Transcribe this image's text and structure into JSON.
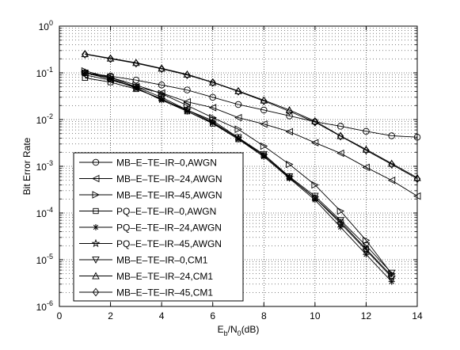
{
  "chart_data": {
    "type": "line",
    "xlabel": {
      "base": "E",
      "sub1": "b",
      "mid": "/N",
      "sub2": "0",
      "tail": "(dB)"
    },
    "ylabel": "Bit Error Rate",
    "xlim": [
      0,
      14
    ],
    "ylim": [
      1e-06,
      1
    ],
    "yscale": "log",
    "grid": true,
    "legend_position": "lower-left",
    "x_ticks": [
      "0",
      "2",
      "4",
      "6",
      "8",
      "10",
      "12",
      "14"
    ],
    "y_ticks": [
      {
        "base": "10",
        "exp": "0",
        "value": 1
      },
      {
        "base": "10",
        "exp": "-1",
        "value": 0.1
      },
      {
        "base": "10",
        "exp": "-2",
        "value": 0.01
      },
      {
        "base": "10",
        "exp": "-3",
        "value": 0.001
      },
      {
        "base": "10",
        "exp": "-4",
        "value": 0.0001
      },
      {
        "base": "10",
        "exp": "-5",
        "value": 1e-05
      },
      {
        "base": "10",
        "exp": "-6",
        "value": 1e-06
      }
    ],
    "series": [
      {
        "name": "MB–E–TE–IR–0,AWGN",
        "marker": "circle",
        "x": [
          1,
          2,
          3,
          4,
          5,
          6,
          7,
          8,
          9,
          10,
          11,
          12,
          13,
          14
        ],
        "y": [
          0.1,
          0.085,
          0.07,
          0.055,
          0.043,
          0.03,
          0.021,
          0.016,
          0.012,
          0.009,
          0.0072,
          0.0056,
          0.0045,
          0.0042
        ]
      },
      {
        "name": "MB–E–TE–IR–24,AWGN",
        "marker": "triangle-left",
        "x": [
          1,
          2,
          3,
          4,
          5,
          6,
          7,
          8,
          9,
          10,
          11,
          12,
          13,
          14
        ],
        "y": [
          0.09,
          0.07,
          0.05,
          0.037,
          0.024,
          0.018,
          0.011,
          0.008,
          0.0055,
          0.0032,
          0.0019,
          0.00095,
          0.0005,
          0.00023
        ]
      },
      {
        "name": "MB–E–TE–IR–45,AWGN",
        "marker": "triangle-right",
        "x": [
          1,
          2,
          3,
          4,
          5,
          6,
          7,
          8,
          9,
          10,
          11,
          12,
          13
        ],
        "y": [
          0.11,
          0.08,
          0.055,
          0.036,
          0.02,
          0.011,
          0.0062,
          0.0027,
          0.0011,
          0.0004,
          0.00011,
          2.6e-05,
          5e-06
        ]
      },
      {
        "name": "PQ–E–TE–IR–0,AWGN",
        "marker": "square",
        "x": [
          1,
          2,
          3,
          4,
          5,
          6,
          7,
          8,
          9,
          10,
          11,
          12,
          13
        ],
        "y": [
          0.078,
          0.063,
          0.045,
          0.028,
          0.015,
          0.0082,
          0.0038,
          0.0017,
          0.00057,
          0.00021,
          6.5e-05,
          1.7e-05,
          4.5e-06
        ]
      },
      {
        "name": "PQ–E–TE–IR–24,AWGN",
        "marker": "asterisk",
        "x": [
          1,
          2,
          3,
          4,
          5,
          6,
          7,
          8,
          9,
          10,
          11,
          12,
          13
        ],
        "y": [
          0.1,
          0.075,
          0.048,
          0.026,
          0.015,
          0.0085,
          0.0038,
          0.0016,
          0.00055,
          0.00019,
          5e-05,
          1.3e-05,
          3.4e-06
        ]
      },
      {
        "name": "PQ–E–TE–IR–45,AWGN",
        "marker": "pentagram",
        "x": [
          1,
          2,
          3,
          4,
          5,
          6,
          7,
          8,
          9,
          10,
          11,
          12,
          13
        ],
        "y": [
          0.1,
          0.074,
          0.047,
          0.027,
          0.016,
          0.0088,
          0.004,
          0.0017,
          0.00058,
          0.00021,
          6e-05,
          1.6e-05,
          4.2e-06
        ]
      },
      {
        "name": "MB–E–TE–IR–0,CM1",
        "marker": "triangle-down",
        "x": [
          1,
          2,
          3,
          4,
          5,
          6,
          7,
          8,
          9,
          10,
          11,
          12,
          13
        ],
        "y": [
          0.1,
          0.08,
          0.05,
          0.03,
          0.016,
          0.0095,
          0.0041,
          0.0018,
          0.0006,
          0.00023,
          7e-05,
          2e-05,
          5.2e-06
        ]
      },
      {
        "name": "MB–E–TE–IR–24,CM1",
        "marker": "triangle-up",
        "x": [
          1,
          2,
          3,
          4,
          5,
          6,
          7,
          8,
          9,
          10,
          11,
          12,
          13,
          14
        ],
        "y": [
          0.255,
          0.205,
          0.165,
          0.125,
          0.093,
          0.063,
          0.041,
          0.026,
          0.016,
          0.0093,
          0.0045,
          0.0023,
          0.00115,
          0.00057
        ]
      },
      {
        "name": "MB–E–TE–IR–45,CM1",
        "marker": "diamond",
        "x": [
          1,
          2,
          3,
          4,
          5,
          6,
          7,
          8,
          9,
          10,
          11,
          12,
          13,
          14
        ],
        "y": [
          0.25,
          0.2,
          0.16,
          0.122,
          0.09,
          0.062,
          0.04,
          0.025,
          0.015,
          0.0088,
          0.0044,
          0.0022,
          0.0011,
          0.00054
        ]
      }
    ]
  }
}
